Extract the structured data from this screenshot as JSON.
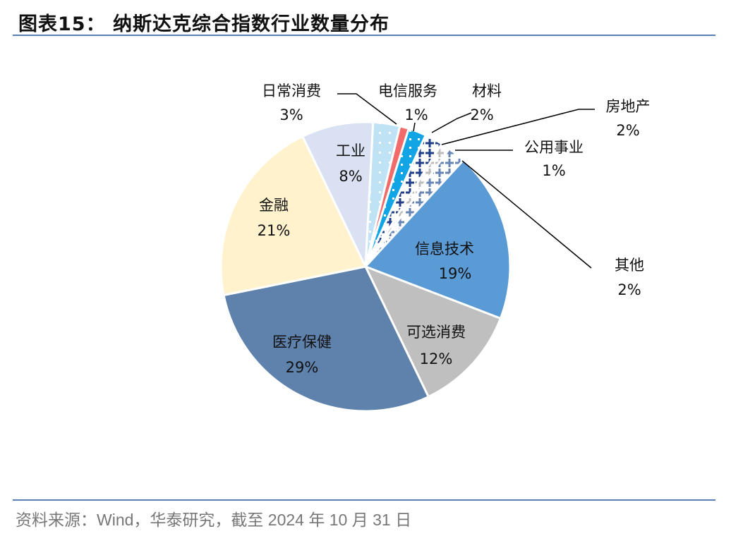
{
  "title": "图表15：  纳斯达克综合指数行业数量分布",
  "source": "资料来源：Wind，华泰研究，截至 2024 年 10 月 31 日",
  "chart_data": {
    "type": "pie",
    "title": "",
    "start_direction": "clockwise from top",
    "slices": [
      {
        "label": "日常消费",
        "value": 3,
        "pct_label": "3%",
        "color": "#bfe3f5",
        "pattern": "dots"
      },
      {
        "label": "电信服务",
        "value": 1,
        "pct_label": "1%",
        "color": "#f26b6b",
        "pattern": "solid"
      },
      {
        "label": "材料",
        "value": 2,
        "pct_label": "2%",
        "color": "#12a5e6",
        "pattern": "dots"
      },
      {
        "label": "房地产",
        "value": 2,
        "pct_label": "2%",
        "color": "#1f3f8a",
        "pattern": "crosses"
      },
      {
        "label": "公用事业",
        "value": 1,
        "pct_label": "1%",
        "color": "#bdbdbd",
        "pattern": "crosses"
      },
      {
        "label": "其他",
        "value": 2,
        "pct_label": "2%",
        "color": "#6685b5",
        "pattern": "crosses"
      },
      {
        "label": "信息技术",
        "value": 19,
        "pct_label": "19%",
        "color": "#5b9bd5",
        "pattern": "solid"
      },
      {
        "label": "可选消费",
        "value": 12,
        "pct_label": "12%",
        "color": "#bfbfbf",
        "pattern": "solid"
      },
      {
        "label": "医疗保健",
        "value": 29,
        "pct_label": "29%",
        "color": "#5f82ad",
        "pattern": "solid"
      },
      {
        "label": "金融",
        "value": 21,
        "pct_label": "21%",
        "color": "#fff2cc",
        "pattern": "solid"
      },
      {
        "label": "工业",
        "value": 8,
        "pct_label": "8%",
        "color": "#d9e1f2",
        "pattern": "solid"
      }
    ]
  }
}
